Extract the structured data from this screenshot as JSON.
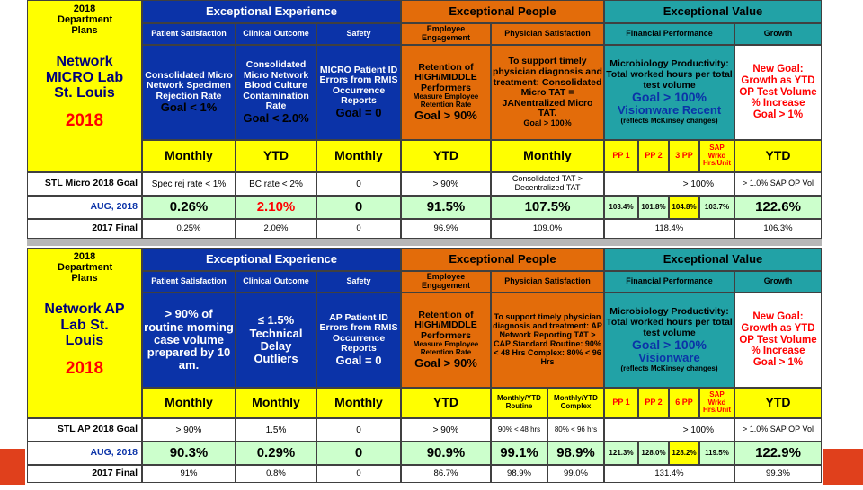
{
  "colors": {
    "yellow": "#ffff00",
    "blue": "#0b33a8",
    "orange": "#e36c0a",
    "teal": "#22a2a6",
    "green": "#ccffcc",
    "red": "#ff0000",
    "navy": "#00007a"
  },
  "micro": {
    "dept_plans": "2018 Department Plans",
    "title": "Network MICRO Lab St. Louis",
    "year": "2018",
    "sections": {
      "experience": "Exceptional Experience",
      "people": "Exceptional People",
      "value": "Exceptional Value"
    },
    "subheads": {
      "patient_satisfaction": "Patient Satisfaction",
      "clinical_outcome": "Clinical Outcome",
      "safety": "Safety",
      "employee_engagement": "Employee Engagement",
      "physician_satisfaction": "Physician Satisfaction",
      "financial_performance": "Financial Performance",
      "growth": "Growth"
    },
    "desc": {
      "patient_sat_main": "Consolidated Micro Network Specimen Rejection Rate",
      "patient_sat_goal": "Goal < 1%",
      "clinical_main": "Consolidated Micro Network Blood Culture Contamination Rate",
      "clinical_goal": "Goal < 2.0%",
      "safety_main": "MICRO Patient ID Errors from RMIS Occurrence Reports",
      "safety_goal": "Goal = 0",
      "engagement_main": "Retention of HIGH/MIDDLE Performers",
      "engagement_measure": "Measure Employee Retention Rate",
      "engagement_goal": "Goal > 90%",
      "physician_main": "To support timely physician diagnosis and treatment: Consolidated Micro TAT = JANentralized Micro TAT.",
      "physician_goal": "Goal > 100%",
      "financial_main": "Microbiology Productivity: Total worked hours per total test volume",
      "financial_goal": "Goal > 100%",
      "financial_system": "Visionware Recent",
      "financial_note": "(reflects McKinsey changes)",
      "growth_newgoal": "New Goal:",
      "growth_main": "Growth as YTD OP Test Volume % Increase",
      "growth_goal": "Goal > 1%"
    },
    "freq": {
      "ps": "Monthly",
      "co": "YTD",
      "sa": "Monthly",
      "ee": "YTD",
      "phys": "Monthly",
      "pp1": "PP 1",
      "pp2": "PP 2",
      "pp3": "3 PP",
      "sap": "SAP Wrkd Hrs/Unit",
      "gr": "YTD"
    },
    "goal_row": {
      "label": "STL Micro 2018 Goal",
      "ps": "Spec rej rate < 1%",
      "co": "BC rate < 2%",
      "sa": "0",
      "ee": "> 90%",
      "phys": "Consolidated TAT > Decentralized TAT",
      "fin": "> 100%",
      "gr": "> 1.0% SAP OP Vol"
    },
    "current_row": {
      "label": "AUG, 2018",
      "ps": "0.26%",
      "co": "2.10%",
      "sa": "0",
      "ee": "91.5%",
      "phys": "107.5%",
      "pp1": "103.4%",
      "pp2": "101.8%",
      "pp3": "104.8%",
      "sap": "103.7%",
      "gr": "122.6%"
    },
    "prior_row": {
      "label": "2017 Final",
      "ps": "0.25%",
      "co": "2.06%",
      "sa": "0",
      "ee": "96.9%",
      "phys": "109.0%",
      "fin": "118.4%",
      "gr": "106.3%"
    }
  },
  "ap": {
    "dept_plans": "2018 Department Plans",
    "title": "Network AP Lab St. Louis",
    "year": "2018",
    "sections": {
      "experience": "Exceptional Experience",
      "people": "Exceptional People",
      "value": "Exceptional Value"
    },
    "subheads": {
      "patient_satisfaction": "Patient Satisfaction",
      "clinical_outcome": "Clinical Outcome",
      "safety": "Safety",
      "employee_engagement": "Employee Engagement",
      "physician_satisfaction": "Physician Satisfaction",
      "financial_performance": "Financial Performance",
      "growth": "Growth"
    },
    "desc": {
      "patient_sat_main": "> 90% of routine morning case volume prepared by 10 am.",
      "clinical_main": "≤ 1.5% Technical Delay Outliers",
      "safety_main": "AP Patient ID Errors from RMIS Occurrence Reports",
      "safety_goal": "Goal = 0",
      "engagement_main": "Retention of HIGH/MIDDLE Performers",
      "engagement_measure": "Measure Employee Retention Rate",
      "engagement_goal": "Goal > 90%",
      "physician_main": "To support timely physician diagnosis and treatment: AP Network Reporting TAT > CAP Standard Routine: 90% < 48 Hrs Complex: 80% < 96 Hrs",
      "financial_main": "Microbiology Productivity: Total worked hours per total test volume",
      "financial_goal": "Goal > 100%",
      "financial_system": "Visionware",
      "financial_note": "(reflects McKinsey changes)",
      "growth_newgoal": "New Goal:",
      "growth_main": "Growth as YTD OP Test Volume % Increase",
      "growth_goal": "Goal > 1%"
    },
    "freq": {
      "ps": "Monthly",
      "co": "Monthly",
      "sa": "Monthly",
      "ee": "YTD",
      "phys_routine": "Monthly/YTD Routine",
      "phys_complex": "Monthly/YTD Complex",
      "pp1": "PP 1",
      "pp2": "PP 2",
      "pp3": "6 PP",
      "sap": "SAP Wrkd Hrs/Unit",
      "gr": "YTD"
    },
    "goal_row": {
      "label": "STL AP 2018 Goal",
      "ps": "> 90%",
      "co": "1.5%",
      "sa": "0",
      "ee": "> 90%",
      "phys_routine": "90% < 48 hrs",
      "phys_complex": "80% < 96 hrs",
      "fin": "> 100%",
      "gr": "> 1.0% SAP OP Vol"
    },
    "current_row": {
      "label": "AUG, 2018",
      "ps": "90.3%",
      "co": "0.29%",
      "sa": "0",
      "ee": "90.9%",
      "phys_routine": "99.1%",
      "phys_complex": "98.9%",
      "pp1": "121.3%",
      "pp2": "128.0%",
      "pp3": "128.2%",
      "sap": "119.5%",
      "gr": "122.9%"
    },
    "prior_row": {
      "label": "2017 Final",
      "ps": "91%",
      "co": "0.8%",
      "sa": "0",
      "ee": "86.7%",
      "phys_routine": "98.9%",
      "phys_complex": "99.0%",
      "fin": "131.4%",
      "gr": "99.3%"
    }
  }
}
